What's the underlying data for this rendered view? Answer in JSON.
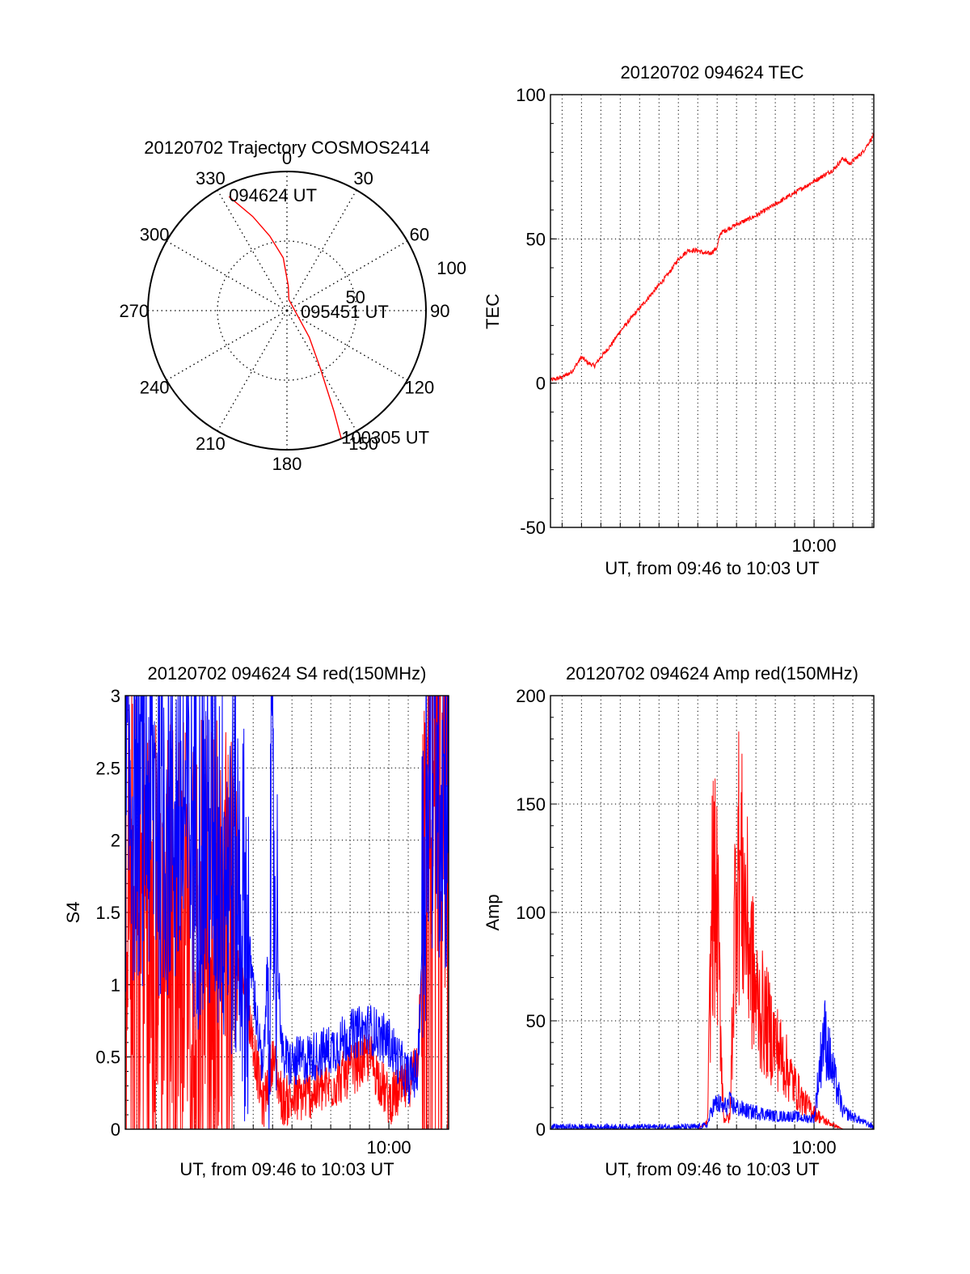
{
  "colors": {
    "red": "#ff0000",
    "blue": "#0000ff",
    "axis": "#000000",
    "grid": "#000000"
  },
  "chart_data": [
    {
      "id": "trajectory",
      "type": "polar",
      "title": "20120702 Trajectory COSMOS2414",
      "angle_labels": [
        "0",
        "30",
        "60",
        "90",
        "120",
        "150",
        "180",
        "210",
        "240",
        "270",
        "300",
        "330"
      ],
      "radial_labels": [
        "50",
        "100"
      ],
      "radial_max": 100,
      "grid": true,
      "series": [
        {
          "color": "red",
          "points": [
            [
              333,
              92
            ],
            [
              340,
              72
            ],
            [
              347,
              55
            ],
            [
              356,
              38
            ],
            [
              3,
              18
            ],
            [
              10,
              8
            ],
            [
              140,
              25
            ],
            [
              150,
              48
            ],
            [
              155,
              80
            ],
            [
              157,
              100
            ]
          ]
        }
      ],
      "annotations": [
        {
          "text": "094624 UT",
          "azimuth": 333,
          "r": 92
        },
        {
          "text": "095451 UT",
          "azimuth": 100,
          "r": 10
        },
        {
          "text": "100305 UT",
          "azimuth": 157,
          "r": 100
        }
      ]
    },
    {
      "id": "tec",
      "type": "line",
      "title": "20120702 094624 TEC",
      "xlabel": "UT, from 09:46 to 10:03 UT",
      "ylabel": "TEC",
      "xlim": [
        "09:46:24",
        "10:03:05"
      ],
      "ylim": [
        -50,
        100
      ],
      "yticks": [
        "-50",
        "0",
        "50",
        "100"
      ],
      "xtick_labels": [
        {
          "t": "10:00:00",
          "label": "10:00"
        }
      ],
      "grid": true,
      "series": [
        {
          "color": "red",
          "t": [
            "09:46:24",
            "09:47:00",
            "09:47:30",
            "09:48:00",
            "09:48:20",
            "09:48:40",
            "09:49:00",
            "09:49:30",
            "09:50:00",
            "09:50:30",
            "09:51:00",
            "09:51:30",
            "09:52:00",
            "09:52:30",
            "09:53:00",
            "09:53:30",
            "09:54:00",
            "09:54:20",
            "09:54:40",
            "09:55:00",
            "09:55:10",
            "09:56:00",
            "09:57:00",
            "09:58:00",
            "09:59:00",
            "10:00:00",
            "10:01:00",
            "10:01:30",
            "10:01:50",
            "10:02:10",
            "10:02:30",
            "10:03:05"
          ],
          "values": [
            1,
            2,
            4,
            9,
            7,
            6,
            9,
            13,
            18,
            22,
            26,
            30,
            34,
            38,
            43,
            46,
            46,
            45,
            45,
            47,
            52,
            55,
            58,
            62,
            66,
            70,
            74,
            78,
            76,
            78,
            80,
            86
          ]
        }
      ]
    },
    {
      "id": "s4",
      "type": "line",
      "title": "20120702 094624 S4 red(150MHz)",
      "xlabel": "UT, from 09:46 to 10:03 UT",
      "ylabel": "S4",
      "xlim": [
        "09:46:24",
        "10:03:05"
      ],
      "ylim": [
        0,
        3
      ],
      "yticks": [
        "0",
        "0.5",
        "1",
        "1.5",
        "2",
        "2.5",
        "3"
      ],
      "xtick_labels": [
        {
          "t": "10:00:00",
          "label": "10:00"
        }
      ],
      "grid": true,
      "series": [
        {
          "color": "red",
          "t": [
            "09:46:24",
            "09:47:00",
            "09:48:00",
            "09:49:00",
            "09:50:00",
            "09:51:00",
            "09:52:00",
            "09:52:30",
            "09:53:00",
            "09:53:30",
            "09:54:00",
            "09:54:30",
            "09:55:00",
            "09:56:00",
            "09:57:00",
            "09:58:00",
            "09:59:00",
            "10:00:00",
            "10:01:00",
            "10:01:30",
            "10:02:00",
            "10:03:05"
          ],
          "values": [
            1.9,
            1.6,
            1.5,
            1.5,
            1.5,
            1.45,
            1.3,
            1.0,
            0.6,
            0.15,
            0.5,
            0.2,
            0.2,
            0.25,
            0.3,
            0.4,
            0.5,
            0.2,
            0.3,
            0.5,
            2.5,
            2.3
          ]
        },
        {
          "color": "blue",
          "t": [
            "09:46:24",
            "09:47:00",
            "09:48:00",
            "09:49:00",
            "09:50:00",
            "09:51:00",
            "09:52:00",
            "09:52:30",
            "09:53:00",
            "09:53:30",
            "09:54:00",
            "09:54:30",
            "09:55:00",
            "09:56:00",
            "09:57:00",
            "09:58:00",
            "09:59:00",
            "10:00:00",
            "10:01:00",
            "10:01:30",
            "10:02:00",
            "10:03:05"
          ],
          "values": [
            2.3,
            2.4,
            2.3,
            2.2,
            2.1,
            2.0,
            1.8,
            1.5,
            1.0,
            0.35,
            2.0,
            0.5,
            0.45,
            0.5,
            0.55,
            0.65,
            0.7,
            0.6,
            0.35,
            0.4,
            2.6,
            2.4
          ]
        }
      ]
    },
    {
      "id": "amp",
      "type": "line",
      "title": "20120702 094624 Amp red(150MHz)",
      "xlabel": "UT, from 09:46 to 10:03 UT",
      "ylabel": "Amp",
      "xlim": [
        "09:46:24",
        "10:03:05"
      ],
      "ylim": [
        0,
        200
      ],
      "yticks": [
        "0",
        "50",
        "100",
        "150",
        "200"
      ],
      "xtick_labels": [
        {
          "t": "10:00:00",
          "label": "10:00"
        }
      ],
      "grid": true,
      "series": [
        {
          "color": "red",
          "t": [
            "09:46:24",
            "09:50:00",
            "09:54:00",
            "09:54:30",
            "09:54:45",
            "09:55:00",
            "09:55:20",
            "09:55:40",
            "09:56:00",
            "09:56:20",
            "09:56:40",
            "09:57:00",
            "09:57:30",
            "09:58:00",
            "09:58:30",
            "09:59:00",
            "09:59:30",
            "10:00:00",
            "10:00:30",
            "10:01:00",
            "10:01:30",
            "10:03:05"
          ],
          "values": [
            0,
            0,
            0,
            3,
            110,
            100,
            5,
            5,
            130,
            110,
            85,
            60,
            50,
            40,
            30,
            20,
            12,
            8,
            4,
            2,
            0,
            0
          ]
        },
        {
          "color": "blue",
          "t": [
            "09:46:24",
            "09:50:00",
            "09:54:00",
            "09:54:30",
            "09:54:45",
            "09:55:00",
            "09:55:20",
            "09:55:40",
            "09:56:00",
            "09:56:20",
            "09:56:40",
            "09:57:00",
            "09:57:30",
            "09:58:00",
            "09:58:30",
            "09:59:00",
            "09:59:30",
            "10:00:00",
            "10:00:30",
            "10:01:00",
            "10:01:30",
            "10:03:05"
          ],
          "values": [
            1,
            1,
            1,
            2,
            10,
            12,
            10,
            12,
            10,
            9,
            8,
            8,
            7,
            6,
            6,
            6,
            5,
            5,
            45,
            25,
            8,
            1
          ]
        }
      ]
    }
  ]
}
